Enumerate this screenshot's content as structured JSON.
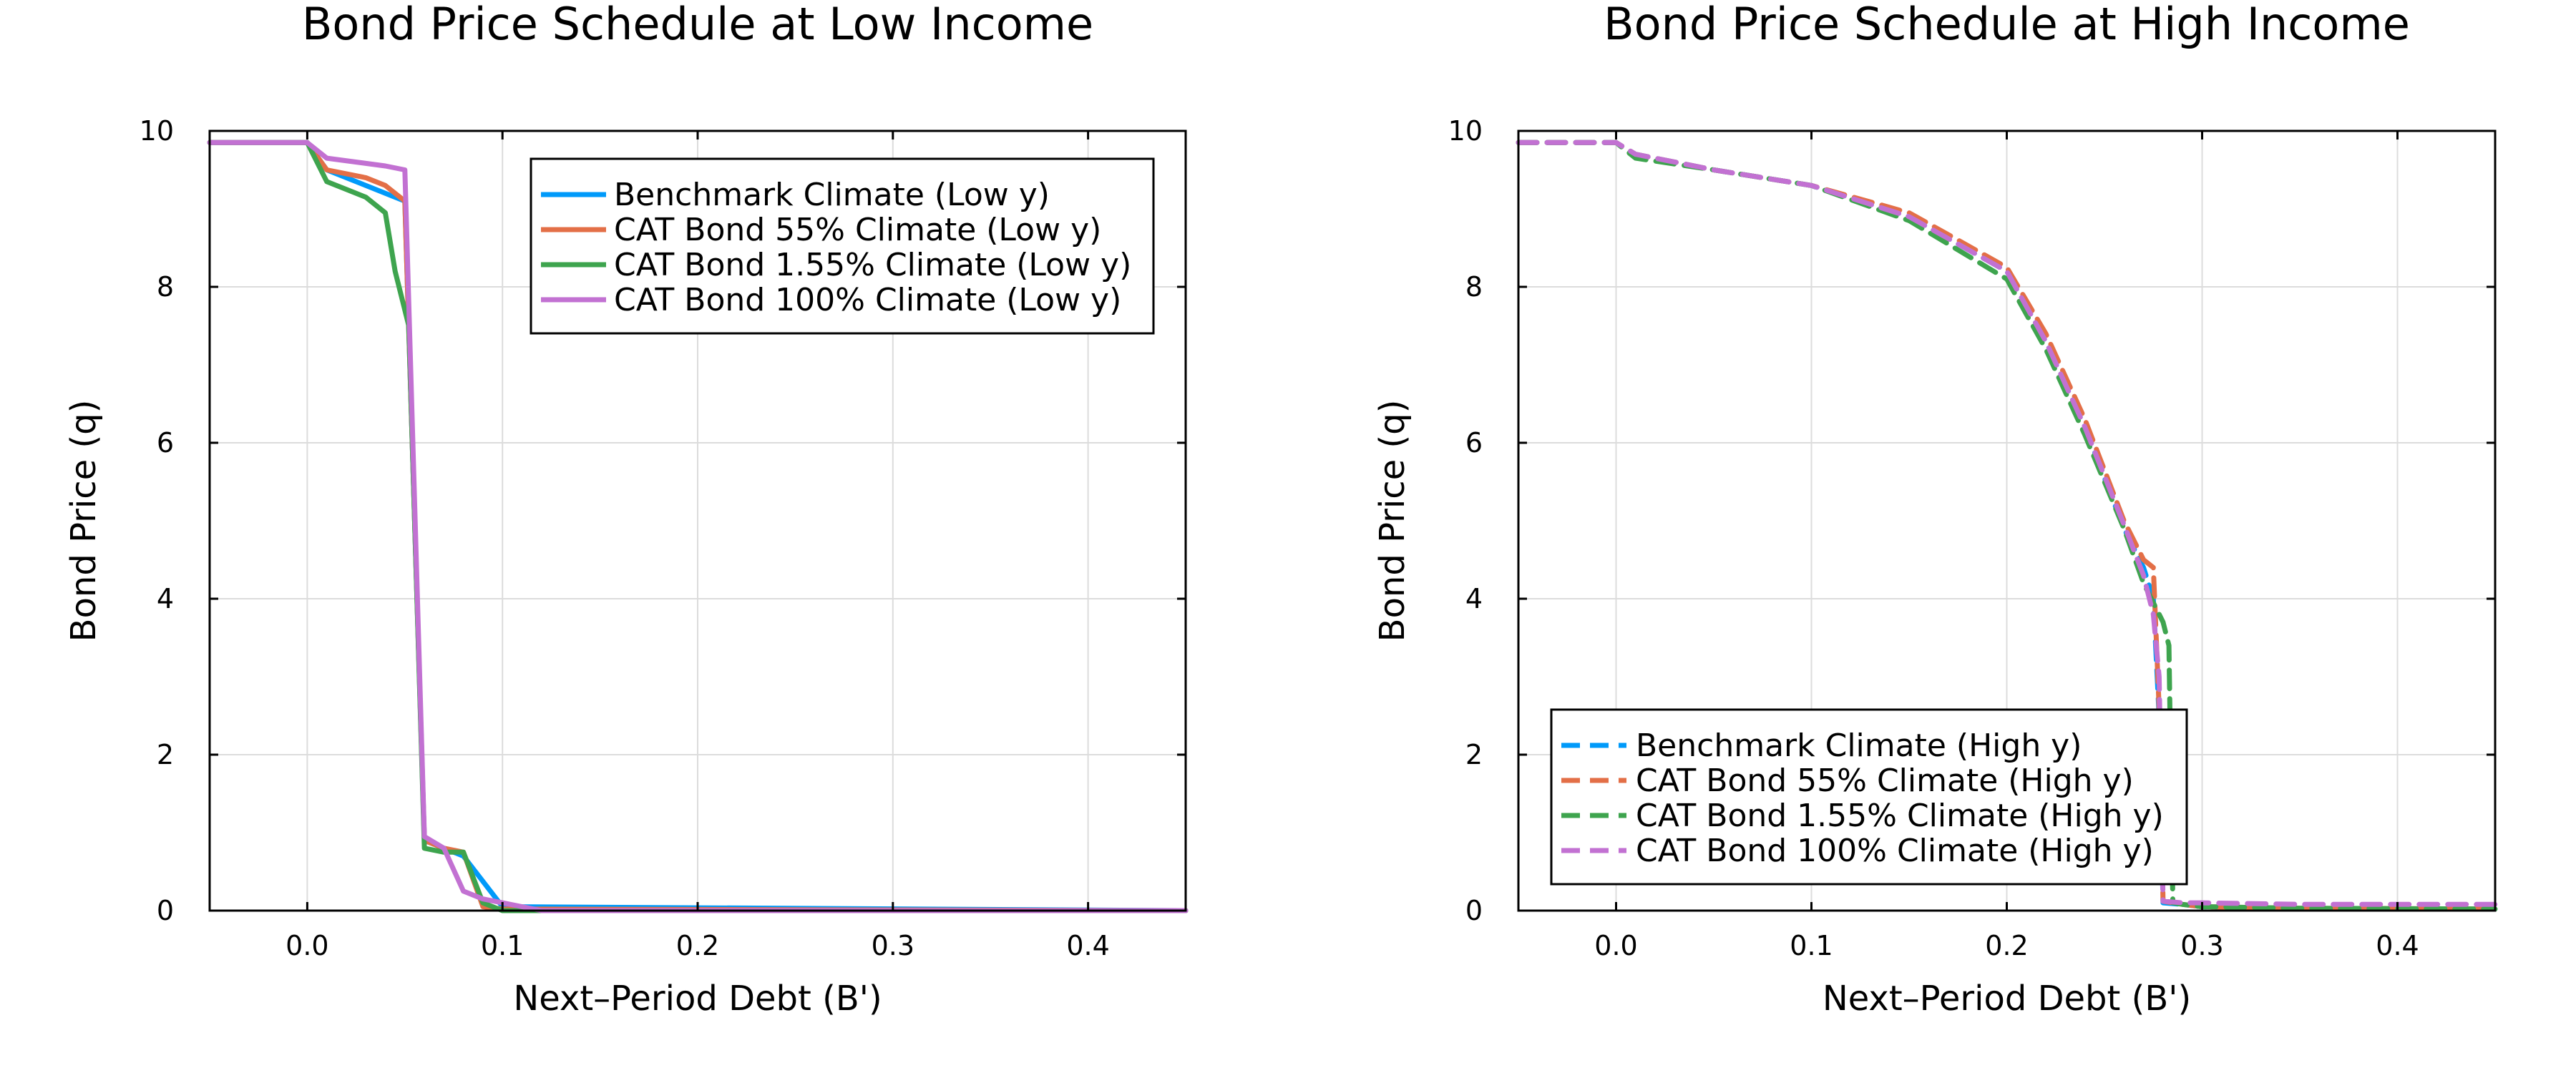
{
  "chart_data": [
    {
      "type": "line",
      "title": "Bond Price Schedule at Low Income",
      "xlabel": "Next–Period Debt (B')",
      "ylabel": "Bond Price (q)",
      "xlim": [
        -0.05,
        0.45
      ],
      "ylim": [
        0,
        10
      ],
      "xticks": [
        0.0,
        0.1,
        0.2,
        0.3,
        0.4
      ],
      "xtick_labels": [
        "0.0",
        "0.1",
        "0.2",
        "0.3",
        "0.4"
      ],
      "yticks": [
        0,
        2,
        4,
        6,
        8,
        10
      ],
      "ytick_labels": [
        "0",
        "2",
        "4",
        "6",
        "8",
        "10"
      ],
      "grid": true,
      "legend_position": "top-right",
      "line_style": "solid",
      "series": [
        {
          "name": "Benchmark Climate (Low y)",
          "color": "#009AFA",
          "x": [
            -0.05,
            0.0,
            0.01,
            0.05,
            0.06,
            0.08,
            0.1,
            0.45
          ],
          "y": [
            9.85,
            9.85,
            9.5,
            9.1,
            0.9,
            0.7,
            0.05,
            0.0
          ]
        },
        {
          "name": "CAT Bond 55% Climate (Low y)",
          "color": "#E36F47",
          "x": [
            -0.05,
            0.0,
            0.01,
            0.03,
            0.04,
            0.05,
            0.06,
            0.07,
            0.08,
            0.09,
            0.1,
            0.45
          ],
          "y": [
            9.85,
            9.85,
            9.5,
            9.4,
            9.3,
            9.1,
            0.9,
            0.8,
            0.75,
            0.05,
            0.02,
            0.0
          ]
        },
        {
          "name": "CAT Bond 1.55% Climate (Low y)",
          "color": "#3EA44E",
          "x": [
            -0.05,
            0.0,
            0.01,
            0.02,
            0.03,
            0.04,
            0.045,
            0.052,
            0.06,
            0.07,
            0.08,
            0.09,
            0.1,
            0.45
          ],
          "y": [
            9.85,
            9.85,
            9.35,
            9.25,
            9.15,
            8.95,
            8.2,
            7.5,
            0.8,
            0.75,
            0.75,
            0.1,
            0.0,
            0.0
          ]
        },
        {
          "name": "CAT Bond 100% Climate (Low y)",
          "color": "#C271D2",
          "x": [
            -0.05,
            0.0,
            0.01,
            0.04,
            0.05,
            0.06,
            0.07,
            0.08,
            0.09,
            0.1,
            0.11,
            0.12,
            0.45
          ],
          "y": [
            9.85,
            9.85,
            9.65,
            9.55,
            9.5,
            0.95,
            0.8,
            0.25,
            0.15,
            0.1,
            0.05,
            0.0,
            0.0
          ]
        }
      ]
    },
    {
      "type": "line",
      "title": "Bond Price Schedule at High Income",
      "xlabel": "Next–Period Debt (B')",
      "ylabel": "Bond Price (q)",
      "xlim": [
        -0.05,
        0.45
      ],
      "ylim": [
        0,
        10
      ],
      "xticks": [
        0.0,
        0.1,
        0.2,
        0.3,
        0.4
      ],
      "xtick_labels": [
        "0.0",
        "0.1",
        "0.2",
        "0.3",
        "0.4"
      ],
      "yticks": [
        0,
        2,
        4,
        6,
        8,
        10
      ],
      "ytick_labels": [
        "0",
        "2",
        "4",
        "6",
        "8",
        "10"
      ],
      "grid": true,
      "legend_position": "bottom-left",
      "line_style": "dashed",
      "series": [
        {
          "name": "Benchmark Climate (High y)",
          "color": "#009AFA",
          "x": [
            -0.05,
            0.0,
            0.01,
            0.05,
            0.1,
            0.15,
            0.2,
            0.22,
            0.24,
            0.26,
            0.27,
            0.275,
            0.278,
            0.28,
            0.29,
            0.3,
            0.35,
            0.45
          ],
          "y": [
            9.85,
            9.85,
            9.7,
            9.5,
            9.3,
            8.9,
            8.2,
            7.3,
            6.2,
            4.9,
            4.4,
            4.0,
            2.5,
            0.1,
            0.08,
            0.05,
            0.03,
            0.02
          ]
        },
        {
          "name": "CAT Bond 55% Climate (High y)",
          "color": "#E36F47",
          "x": [
            -0.05,
            0.0,
            0.01,
            0.05,
            0.1,
            0.15,
            0.2,
            0.22,
            0.24,
            0.26,
            0.27,
            0.275,
            0.278,
            0.28,
            0.29,
            0.3,
            0.35,
            0.45
          ],
          "y": [
            9.85,
            9.85,
            9.7,
            9.5,
            9.3,
            8.95,
            8.25,
            7.4,
            6.3,
            5.0,
            4.5,
            4.4,
            2.6,
            0.12,
            0.08,
            0.05,
            0.03,
            0.02
          ]
        },
        {
          "name": "CAT Bond 1.55% Climate (High y)",
          "color": "#3EA44E",
          "x": [
            -0.05,
            0.0,
            0.01,
            0.05,
            0.1,
            0.15,
            0.2,
            0.22,
            0.24,
            0.26,
            0.27,
            0.28,
            0.283,
            0.285,
            0.29,
            0.3,
            0.35,
            0.45
          ],
          "y": [
            9.85,
            9.85,
            9.65,
            9.5,
            9.3,
            8.85,
            8.1,
            7.2,
            6.1,
            4.9,
            4.2,
            3.7,
            3.4,
            0.1,
            0.08,
            0.05,
            0.03,
            0.02
          ]
        },
        {
          "name": "CAT Bond 100% Climate (High y)",
          "color": "#C271D2",
          "x": [
            -0.05,
            0.0,
            0.01,
            0.05,
            0.1,
            0.15,
            0.2,
            0.22,
            0.24,
            0.26,
            0.27,
            0.275,
            0.278,
            0.28,
            0.29,
            0.3,
            0.35,
            0.45
          ],
          "y": [
            9.85,
            9.85,
            9.7,
            9.5,
            9.3,
            8.9,
            8.2,
            7.3,
            6.2,
            4.95,
            4.3,
            3.8,
            3.0,
            0.12,
            0.1,
            0.1,
            0.08,
            0.08
          ]
        }
      ]
    }
  ]
}
